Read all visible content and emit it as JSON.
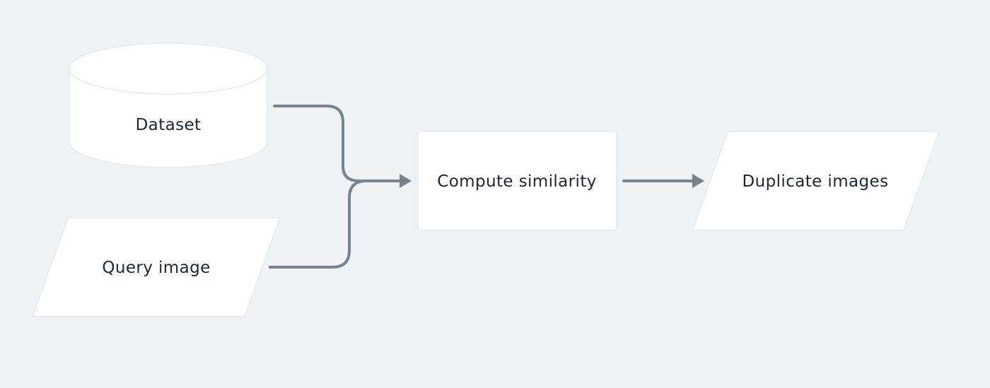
{
  "diagram": {
    "background_color": "#eff3f6",
    "node_fill": "#ffffff",
    "node_stroke": "#e4e9ee",
    "edge_color": "#77848f",
    "text_color": "#1c2733",
    "nodes": [
      {
        "id": "dataset",
        "shape": "cylinder",
        "label": "Dataset"
      },
      {
        "id": "query-image",
        "shape": "parallelogram",
        "label": "Query image"
      },
      {
        "id": "compute-similarity",
        "shape": "rectangle",
        "label": "Compute similarity"
      },
      {
        "id": "duplicate-images",
        "shape": "parallelogram",
        "label": "Duplicate images"
      }
    ],
    "edges": [
      {
        "from": "dataset",
        "to": "compute-similarity"
      },
      {
        "from": "query-image",
        "to": "compute-similarity"
      },
      {
        "from": "compute-similarity",
        "to": "duplicate-images"
      }
    ]
  }
}
